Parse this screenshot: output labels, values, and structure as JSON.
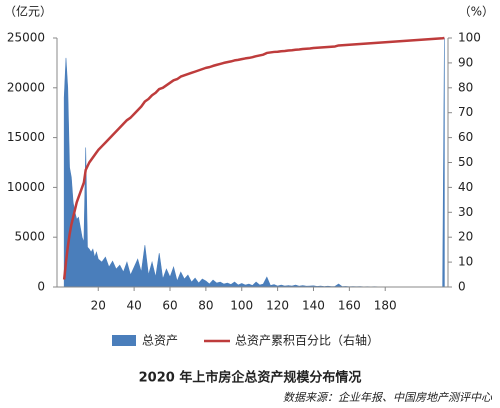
{
  "chart_data": {
    "type": "area-line",
    "title": "2020 年上市房企总资产规模分布情况",
    "source": "数据来源：企业年报、中国房地产测评中心",
    "y_label": "（亿元）",
    "y2_label": "（%）",
    "x": [
      1,
      2,
      3,
      4,
      5,
      6,
      7,
      8,
      9,
      10,
      11,
      12,
      13,
      14,
      15,
      16,
      17,
      18,
      19,
      20,
      22,
      24,
      26,
      28,
      30,
      32,
      34,
      36,
      38,
      40,
      42,
      44,
      46,
      48,
      50,
      52,
      54,
      56,
      58,
      60,
      62,
      64,
      66,
      68,
      70,
      72,
      74,
      76,
      78,
      80,
      82,
      84,
      86,
      88,
      90,
      92,
      94,
      96,
      98,
      100,
      102,
      104,
      106,
      108,
      110,
      112,
      114,
      116,
      118,
      120,
      122,
      124,
      126,
      128,
      130,
      132,
      134,
      136,
      138,
      140,
      142,
      144,
      146,
      148,
      150,
      152,
      154,
      156,
      158,
      160,
      162,
      164,
      166,
      168,
      170,
      172,
      174,
      176,
      178,
      180,
      182,
      184,
      186,
      188,
      190,
      192,
      194,
      196,
      198,
      200,
      202,
      204,
      206,
      208,
      210,
      212,
      213
    ],
    "series": [
      {
        "name": "总资产",
        "color": "#4a7ebb",
        "values": [
          19000,
          23000,
          20000,
          12000,
          11000,
          8500,
          7500,
          6800,
          7000,
          6000,
          5000,
          4500,
          14000,
          4000,
          3800,
          3500,
          3800,
          3000,
          3500,
          2800,
          2500,
          3000,
          2000,
          2600,
          1800,
          2200,
          1500,
          2500,
          1200,
          2000,
          2800,
          1500,
          4200,
          1200,
          2500,
          1000,
          3400,
          800,
          1800,
          1000,
          2000,
          600,
          1500,
          800,
          1200,
          500,
          900,
          400,
          800,
          600,
          300,
          700,
          400,
          500,
          300,
          400,
          250,
          500,
          200,
          350,
          200,
          300,
          150,
          500,
          200,
          300,
          1000,
          150,
          250,
          100,
          200,
          100,
          150,
          100,
          200,
          80,
          150,
          80,
          100,
          120,
          60,
          100,
          50,
          80,
          40,
          60,
          300,
          40,
          60,
          30,
          50,
          30,
          40,
          20,
          30,
          20,
          30,
          20,
          20,
          15,
          15,
          10,
          10,
          10,
          10,
          10,
          5,
          5,
          5,
          5,
          5,
          5,
          5,
          5,
          5,
          0,
          25000
        ]
      },
      {
        "name": "总资产累积百分比（右轴）",
        "color": "#be3c3c",
        "axis": "y2",
        "values": [
          3,
          10,
          16,
          21,
          25,
          28,
          31,
          34,
          36,
          38,
          40,
          42,
          47,
          48.5,
          50,
          51,
          52,
          53,
          54,
          55,
          56.5,
          58,
          59.5,
          61,
          62.5,
          64,
          65.5,
          67,
          68,
          69.5,
          71,
          72.5,
          74.5,
          75.5,
          77,
          78,
          79.5,
          80,
          81,
          82,
          83,
          83.5,
          84.5,
          85,
          85.5,
          86,
          86.5,
          87,
          87.5,
          88,
          88.3,
          88.8,
          89.2,
          89.6,
          90,
          90.3,
          90.6,
          91,
          91.2,
          91.5,
          91.8,
          92,
          92.3,
          92.7,
          93,
          93.3,
          94,
          94.2,
          94.4,
          94.5,
          94.7,
          94.8,
          95,
          95.1,
          95.3,
          95.4,
          95.6,
          95.7,
          95.8,
          96,
          96.1,
          96.2,
          96.3,
          96.4,
          96.5,
          96.6,
          97,
          97.1,
          97.2,
          97.3,
          97.4,
          97.5,
          97.6,
          97.7,
          97.8,
          97.9,
          98,
          98.1,
          98.2,
          98.3,
          98.4,
          98.5,
          98.6,
          98.7,
          98.8,
          98.9,
          99,
          99.1,
          99.2,
          99.3,
          99.4,
          99.5,
          99.6,
          99.7,
          99.8,
          99.9,
          100
        ]
      }
    ],
    "xlim": [
      -3,
      215
    ],
    "xticks": [
      20,
      40,
      60,
      80,
      100,
      120,
      140,
      160,
      180
    ],
    "ylim": [
      0,
      25000
    ],
    "yticks": [
      0,
      5000,
      10000,
      15000,
      20000,
      25000
    ],
    "y2lim": [
      0,
      100
    ],
    "y2ticks": [
      0,
      10,
      20,
      30,
      40,
      50,
      60,
      70,
      80,
      90,
      100
    ]
  }
}
